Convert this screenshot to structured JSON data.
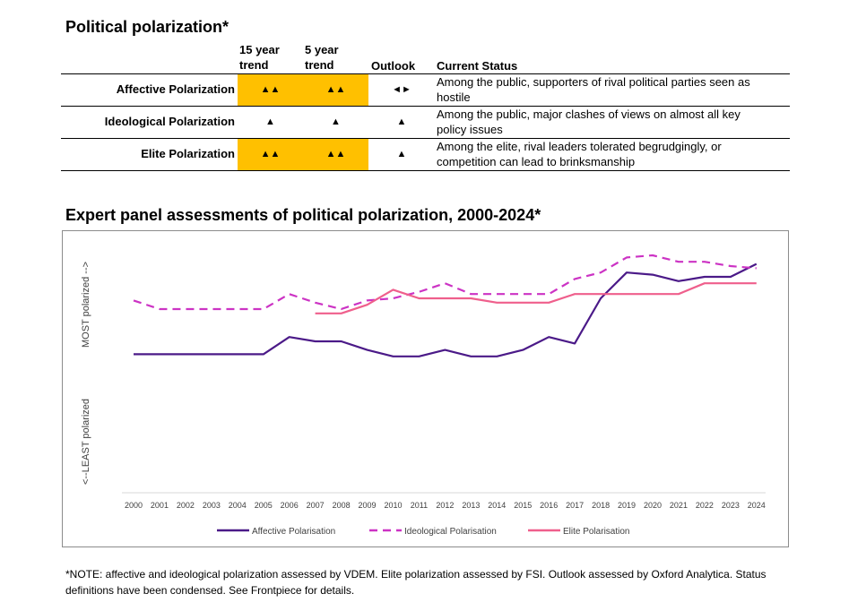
{
  "title": "Political polarization*",
  "table": {
    "headers": {
      "trend15_line1": "15 year",
      "trend15_line2": "trend",
      "trend5_line1": "5 year",
      "trend5_line2": "trend",
      "outlook": "Outlook",
      "status": "Current Status"
    },
    "rows": [
      {
        "label": "Affective Polarization",
        "trend15": "▲▲",
        "trend5": "▲▲",
        "outlook": "◄►",
        "highlight": true,
        "status_line1": "Among the public, supporters of rival political parties seen as",
        "status_line2": "hostile"
      },
      {
        "label": "Ideological Polarization",
        "trend15": "▲",
        "trend5": "▲",
        "outlook": "▲",
        "highlight": false,
        "status_line1": "Among the public, major clashes of views on almost all key",
        "status_line2": "policy issues"
      },
      {
        "label": "Elite Polarization",
        "trend15": "▲▲",
        "trend5": "▲▲",
        "outlook": "▲",
        "highlight": true,
        "status_line1": "Among the elite, rival leaders tolerated begrudgingly, or",
        "status_line2": "competition can lead to brinksmanship"
      }
    ],
    "highlight_color": "#ffc000"
  },
  "chart_data": {
    "type": "line",
    "title": "Expert panel assessments of political polarization, 2000-2024*",
    "ylabel_top": "MOST polarized -->",
    "ylabel_bottom": "<--LEAST polarized",
    "ylim": [
      0,
      100
    ],
    "legend": "bottom",
    "grid": false,
    "x": [
      "2000",
      "2001",
      "2002",
      "2003",
      "2004",
      "2005",
      "2006",
      "2007",
      "2008",
      "2009",
      "2010",
      "2011",
      "2012",
      "2013",
      "2014",
      "2015",
      "2016",
      "2017",
      "2018",
      "2019",
      "2020",
      "2021",
      "2022",
      "2023",
      "2024"
    ],
    "series": [
      {
        "name": "Affective Polarisation",
        "color": "#4b1a88",
        "dash": false,
        "values": [
          49,
          49,
          49,
          49,
          49,
          49,
          57,
          55,
          55,
          51,
          48,
          48,
          51,
          48,
          48,
          51,
          57,
          54,
          75,
          87,
          86,
          83,
          85,
          85,
          91
        ]
      },
      {
        "name": "Ideological Polarisation",
        "color": "#cc33c4",
        "dash": true,
        "values": [
          74,
          70,
          70,
          70,
          70,
          70,
          77,
          73,
          70,
          74,
          75,
          78,
          82,
          77,
          77,
          77,
          77,
          84,
          87,
          94,
          95,
          92,
          92,
          90,
          89
        ]
      },
      {
        "name": "Elite Polarisation",
        "color": "#ef5f8c",
        "dash": false,
        "values": [
          null,
          null,
          null,
          null,
          null,
          null,
          null,
          68,
          68,
          72,
          79,
          75,
          75,
          75,
          73,
          73,
          73,
          77,
          77,
          77,
          77,
          77,
          82,
          82,
          82
        ]
      }
    ]
  },
  "note": {
    "line1": "*NOTE: affective and ideological polarization assessed by VDEM. Elite polarization assessed by FSI. Outlook assessed by Oxford Analytica. Status",
    "line2": "definitions have been condensed. See Frontpiece for details."
  }
}
